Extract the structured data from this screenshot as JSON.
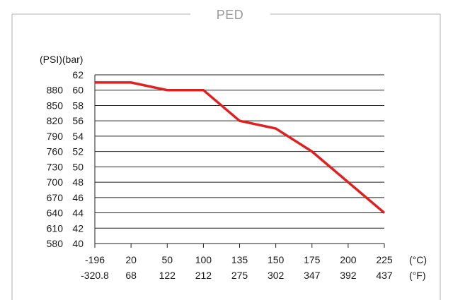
{
  "chart_data": {
    "type": "line",
    "title": "PED",
    "ylabel": "(PSI)(bar)",
    "x": [
      -196,
      20,
      50,
      100,
      135,
      150,
      175,
      200,
      225
    ],
    "x_labels_c": [
      "-196",
      "20",
      "50",
      "100",
      "135",
      "150",
      "175",
      "200",
      "225"
    ],
    "x_labels_f": [
      "-320.8",
      "68",
      "122",
      "212",
      "275",
      "302",
      "347",
      "392",
      "437"
    ],
    "x_unit_c": "(°C)",
    "x_unit_f": "(°F)",
    "series": [
      {
        "values": [
          61,
          61,
          60,
          60,
          56,
          55,
          52,
          48,
          44
        ]
      }
    ],
    "ylim": [
      40,
      62
    ],
    "y_ticks_bar": [
      "62",
      "60",
      "58",
      "56",
      "54",
      "52",
      "50",
      "48",
      "46",
      "44",
      "42",
      "40"
    ],
    "y_ticks_psi": [
      "880",
      "850",
      "820",
      "790",
      "760",
      "730",
      "700",
      "670",
      "640",
      "610",
      "580"
    ],
    "grid": true,
    "line_color": "#e02020",
    "grid_color": "#222222",
    "frame_color": "#b0b0b0"
  }
}
